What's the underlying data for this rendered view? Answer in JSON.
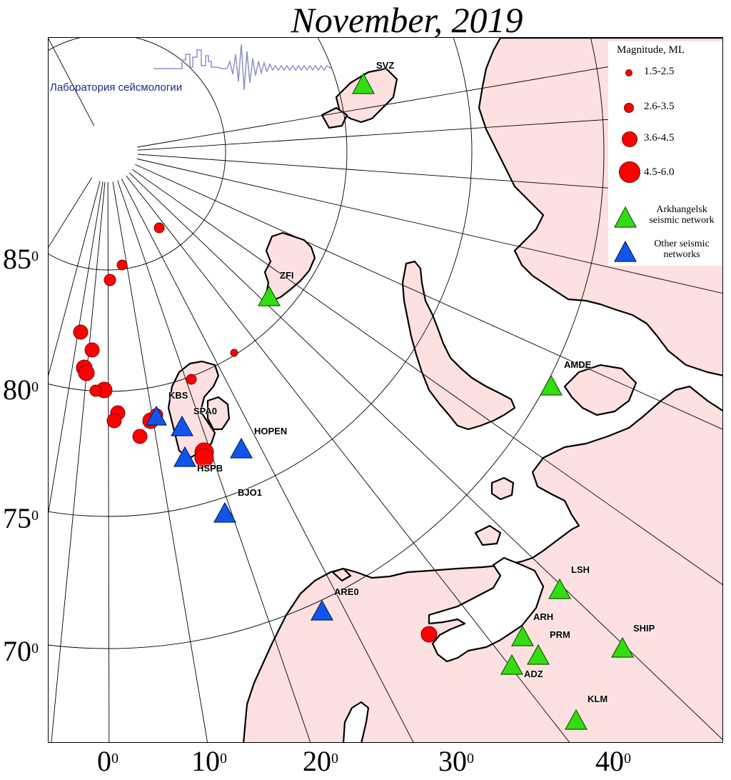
{
  "title": "November, 2019",
  "logo": {
    "text": "Лаборатория сейсмологии"
  },
  "map": {
    "land_color": "#fde0e0",
    "sea_color": "#ffffff",
    "coast_color": "#000000",
    "grid_color": "#000000",
    "lat_labels": [
      {
        "value": "85",
        "unit": "0"
      },
      {
        "value": "80",
        "unit": "0"
      },
      {
        "value": "75",
        "unit": "0"
      },
      {
        "value": "70",
        "unit": "0"
      }
    ],
    "lon_labels": [
      {
        "value": "0",
        "unit": "0"
      },
      {
        "value": "10",
        "unit": "0"
      },
      {
        "value": "20",
        "unit": "0"
      },
      {
        "value": "30",
        "unit": "0"
      },
      {
        "value": "40",
        "unit": "0"
      }
    ]
  },
  "legend": {
    "title": "Magnitude, ML",
    "magnitudes": [
      {
        "label": "1.5-2.5"
      },
      {
        "label": "2.6-3.5"
      },
      {
        "label": "3.6-4.5"
      },
      {
        "label": "4.5-6.0"
      }
    ],
    "networks": [
      {
        "line1": "Arkhangelsk",
        "line2": "seismic network",
        "color": "#33dd11"
      },
      {
        "line1": "Other seismic",
        "line2": "networks",
        "color": "#1155ee"
      }
    ]
  },
  "stations": [
    {
      "code": "SVZ",
      "network": "arkhangelsk"
    },
    {
      "code": "ZFI",
      "network": "arkhangelsk"
    },
    {
      "code": "AMDE",
      "network": "arkhangelsk"
    },
    {
      "code": "LSH",
      "network": "arkhangelsk"
    },
    {
      "code": "ARH",
      "network": "arkhangelsk"
    },
    {
      "code": "PRM",
      "network": "arkhangelsk"
    },
    {
      "code": "SHIP",
      "network": "arkhangelsk"
    },
    {
      "code": "ADZ",
      "network": "arkhangelsk"
    },
    {
      "code": "KLM",
      "network": "arkhangelsk"
    },
    {
      "code": "KBS",
      "network": "other"
    },
    {
      "code": "SPA0",
      "network": "other"
    },
    {
      "code": "HSPB",
      "network": "other"
    },
    {
      "code": "HOPEN",
      "network": "other"
    },
    {
      "code": "BJO1",
      "network": "other"
    },
    {
      "code": "ARE0",
      "network": "other"
    }
  ]
}
